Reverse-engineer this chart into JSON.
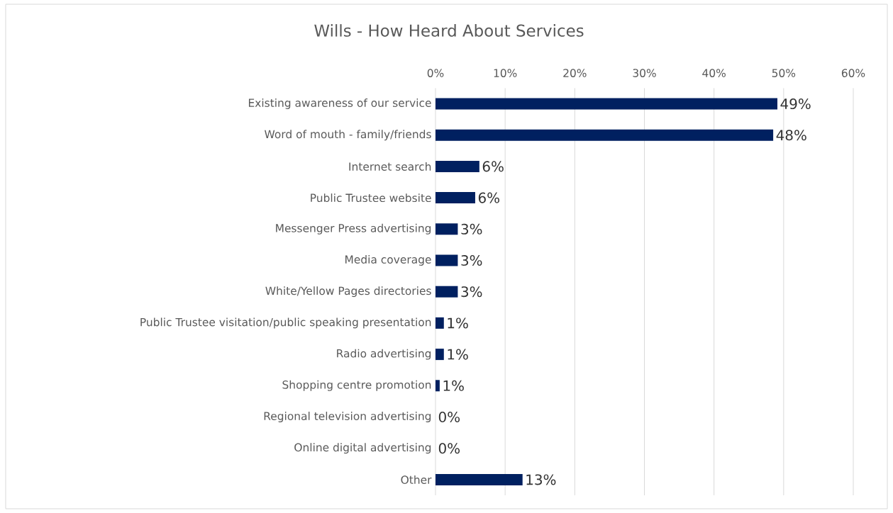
{
  "chart_data": {
    "type": "bar",
    "orientation": "horizontal",
    "title": "Wills - How Heard About Services",
    "categories": [
      "Existing awareness of our service",
      "Word of mouth - family/friends",
      "Internet search",
      "Public Trustee website",
      "Messenger Press advertising",
      "Media coverage",
      "White/Yellow Pages directories",
      "Public Trustee visitation/public speaking presentation",
      "Radio advertising",
      "Shopping centre promotion",
      "Regional television advertising",
      "Online digital advertising",
      "Other"
    ],
    "values": [
      49.1,
      48.5,
      6.3,
      5.7,
      3.2,
      3.2,
      3.2,
      1.2,
      1.2,
      0.6,
      0,
      0,
      12.5
    ],
    "value_labels": [
      "49%",
      "48%",
      "6%",
      "6%",
      "3%",
      "3%",
      "3%",
      "1%",
      "1%",
      "1%",
      "0%",
      "0%",
      "13%"
    ],
    "color": "#002060",
    "xlim": [
      0,
      60
    ],
    "xticks": [
      {
        "value": 0,
        "label": "0%"
      },
      {
        "value": 10,
        "label": "10%"
      },
      {
        "value": 20,
        "label": "20%"
      },
      {
        "value": 30,
        "label": "30%"
      },
      {
        "value": 40,
        "label": "40%"
      },
      {
        "value": 50,
        "label": "50%"
      },
      {
        "value": 60,
        "label": "60%"
      }
    ],
    "grid": "x"
  }
}
